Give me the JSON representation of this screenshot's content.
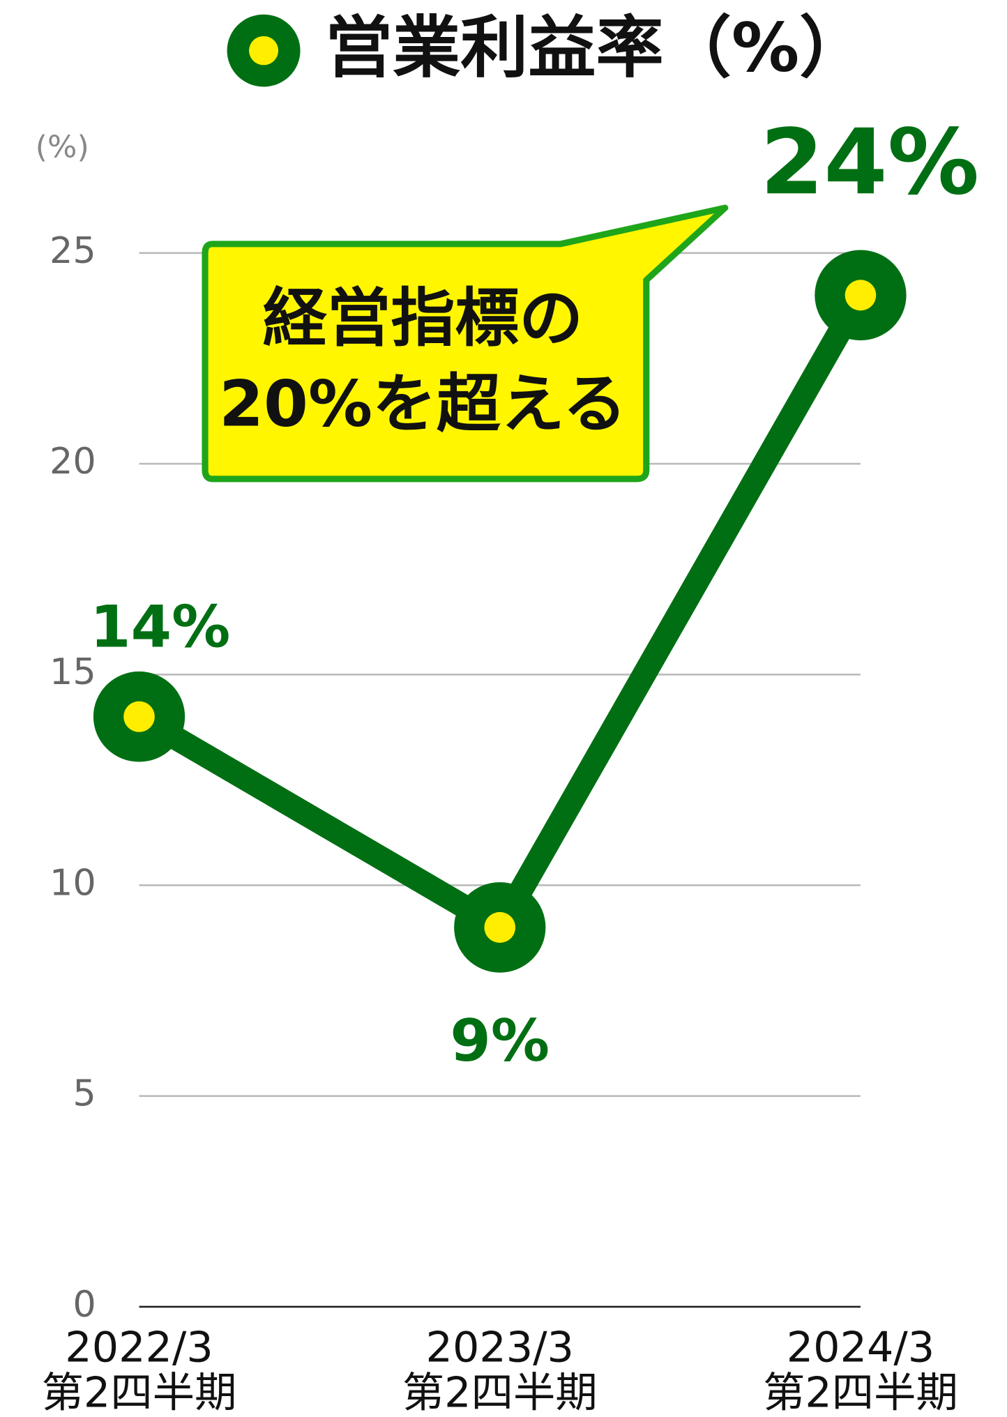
{
  "chart_data": {
    "type": "line",
    "title": "営業利益率（%）",
    "y_axis_label": "(%)",
    "categories": [
      "2022/3",
      "2023/3",
      "2024/3"
    ],
    "category_sublabels": [
      "第2四半期",
      "第2四半期",
      "第2四半期"
    ],
    "series": [
      {
        "name": "営業利益率",
        "color": "#006f13",
        "marker_center": "#ffee00",
        "values": [
          14,
          9,
          24
        ],
        "value_labels": [
          "14%",
          "9%",
          "24%"
        ]
      }
    ],
    "ylim": [
      0,
      25
    ],
    "yticks": [
      0,
      5,
      10,
      15,
      20,
      25
    ],
    "grid": true,
    "annotation": {
      "lines": [
        "経営指標の",
        "20%を超える"
      ],
      "fill": "#fff600",
      "border": "#1fa51a"
    }
  }
}
